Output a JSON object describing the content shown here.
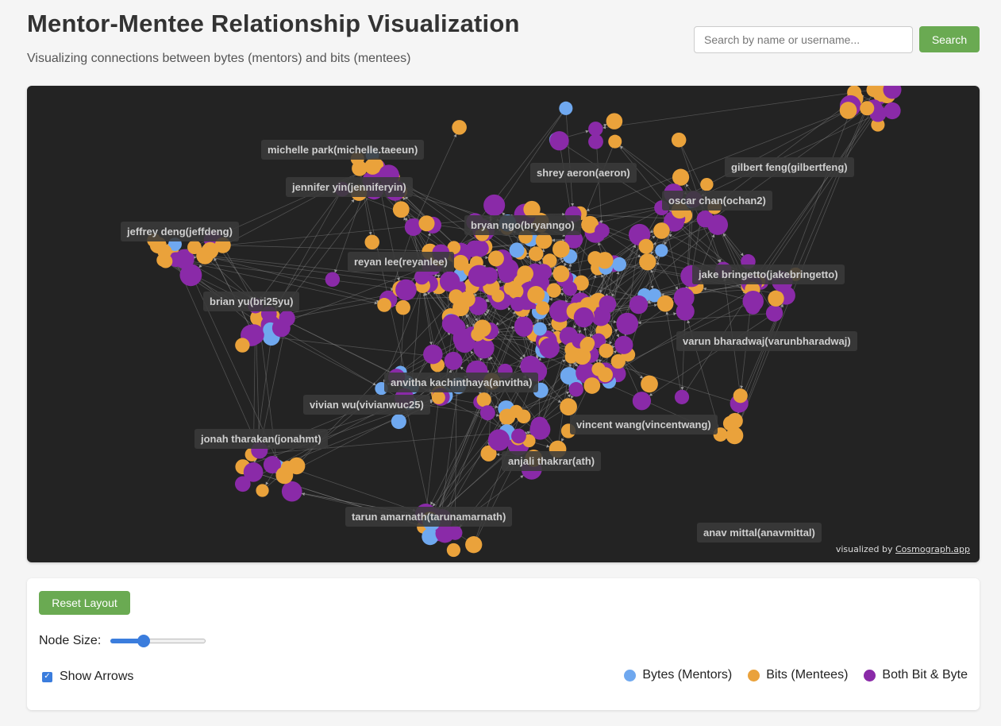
{
  "header": {
    "title": "Mentor-Mentee Relationship Visualization",
    "subtitle": "Visualizing connections between bytes (mentors) and bits (mentees)"
  },
  "search": {
    "placeholder": "Search by name or username...",
    "value": "",
    "button_label": "Search"
  },
  "colors": {
    "byte": "#6fa8ef",
    "bit": "#eaa23b",
    "both": "#8a2aa8",
    "accent": "#6aaa52"
  },
  "graph": {
    "labels": [
      "michelle park(michelle.taeeun)",
      "shrey aeron(aeron)",
      "gilbert feng(gilbertfeng)",
      "jennifer yin(jenniferyin)",
      "oscar chan(ochan2)",
      "jeffrey deng(jeffdeng)",
      "bryan ngo(bryanngo)",
      "reyan lee(reyanlee)",
      "jake bringetto(jakebringetto)",
      "brian yu(bri25yu)",
      "varun bharadwaj(varunbharadwaj)",
      "anvitha kachinthaya(anvitha)",
      "vivian wu(vivianwuc25)",
      "vincent wang(vincentwang)",
      "jonah tharakan(jonahmt)",
      "anjali thakrar(ath)",
      "tarun amarnath(tarunamarnath)",
      "anav mittal(anavmittal)"
    ],
    "credit_prefix": "visualized by ",
    "credit_link": "Cosmograph.app"
  },
  "controls": {
    "reset_label": "Reset Layout",
    "node_size_label": "Node Size:",
    "node_size_value": 0.35,
    "show_arrows_label": "Show Arrows",
    "show_arrows_checked": true
  },
  "legend": [
    {
      "label": "Bytes (Mentors)",
      "color": "#6fa8ef"
    },
    {
      "label": "Bits (Mentees)",
      "color": "#eaa23b"
    },
    {
      "label": "Both Bit & Byte",
      "color": "#8a2aa8"
    }
  ]
}
